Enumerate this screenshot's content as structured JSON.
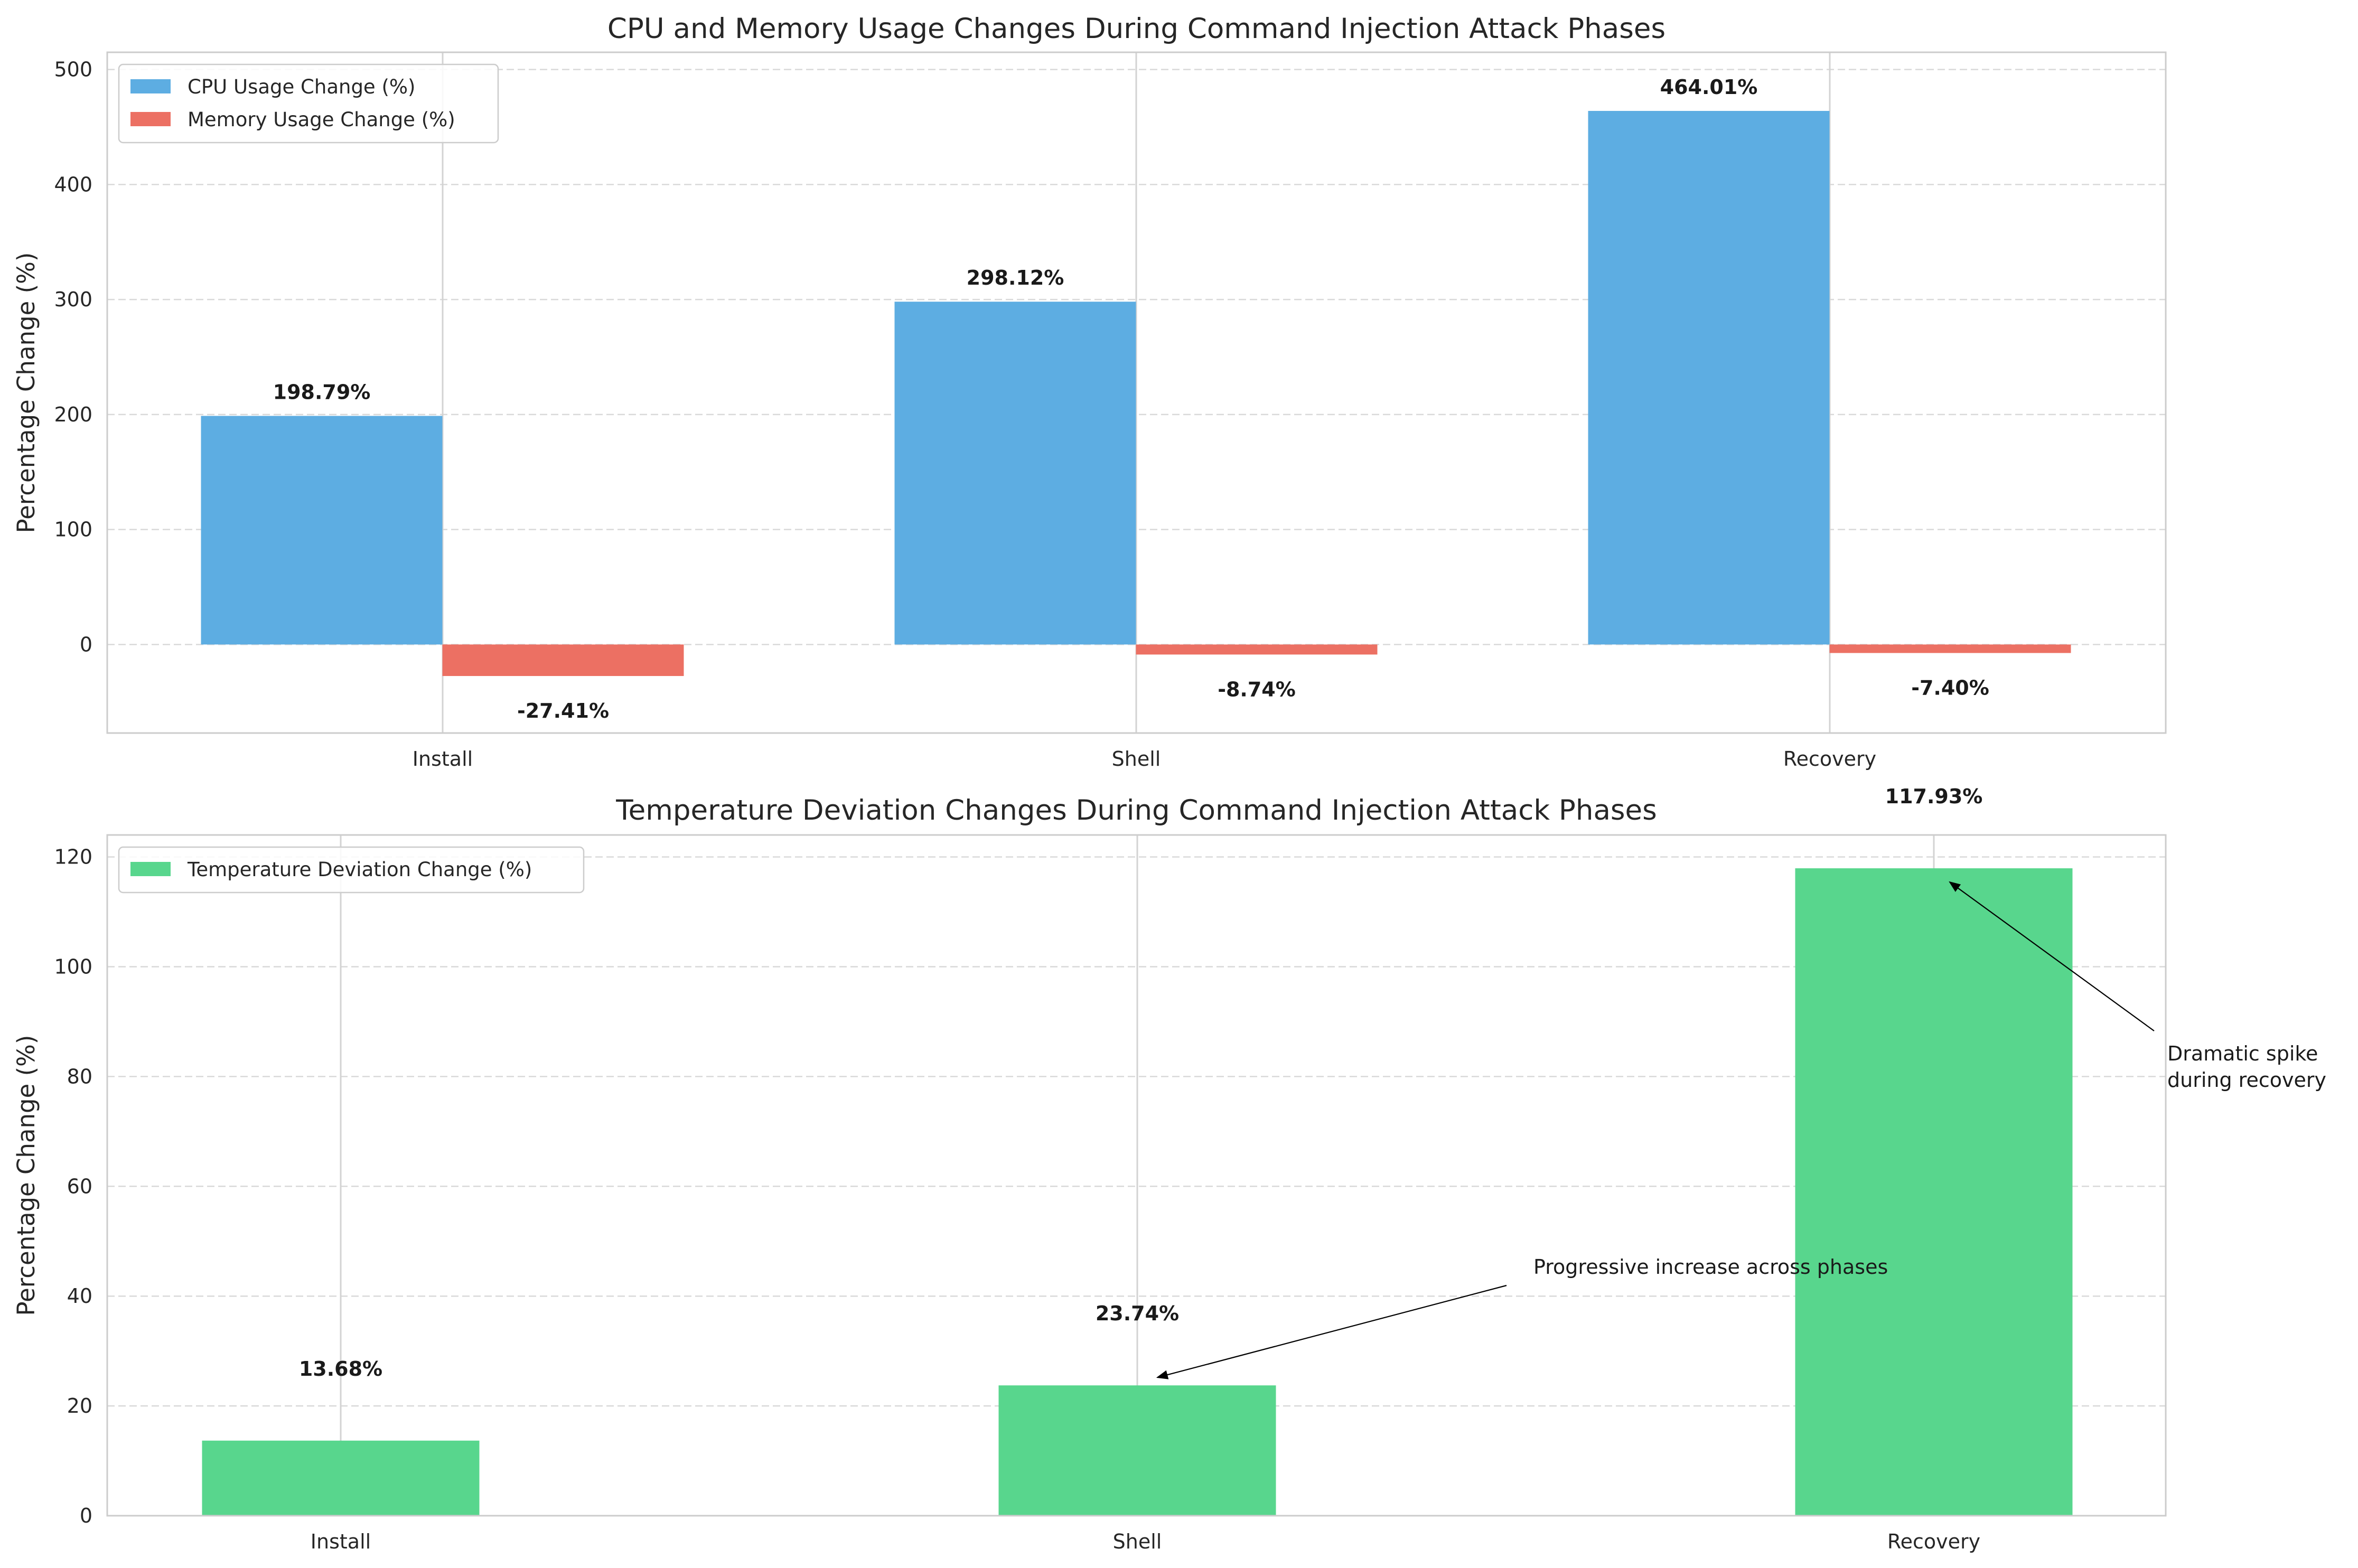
{
  "chart_data": [
    {
      "type": "bar",
      "title": "CPU and Memory Usage Changes During Command Injection Attack Phases",
      "xlabel": "",
      "ylabel": "Percentage Change (%)",
      "categories": [
        "Install",
        "Shell",
        "Recovery"
      ],
      "series": [
        {
          "name": "CPU Usage Change (%)",
          "values": [
            198.79,
            298.12,
            464.01
          ],
          "labels": [
            "198.79%",
            "298.12%",
            "464.01%"
          ],
          "color": "#5dade2"
        },
        {
          "name": "Memory Usage Change (%)",
          "values": [
            -27.41,
            -8.74,
            -7.4
          ],
          "labels": [
            "-27.41%",
            "-8.74%",
            "-7.40%"
          ],
          "color": "#ec7063"
        }
      ],
      "ylim": [
        -77,
        515
      ],
      "yticks": [
        0,
        100,
        200,
        300,
        400,
        500
      ],
      "ytick_labels": [
        "0",
        "100",
        "200",
        "300",
        "400",
        "500"
      ],
      "grid": true,
      "legend": "top-left"
    },
    {
      "type": "bar",
      "title": "Temperature Deviation Changes During Command Injection Attack Phases",
      "xlabel": "",
      "ylabel": "Percentage Change (%)",
      "categories": [
        "Install",
        "Shell",
        "Recovery"
      ],
      "series": [
        {
          "name": "Temperature Deviation Change (%)",
          "values": [
            13.68,
            23.74,
            117.93
          ],
          "labels": [
            "13.68%",
            "23.74%",
            "117.93%"
          ],
          "color": "#58d68d"
        }
      ],
      "ylim": [
        0,
        124
      ],
      "yticks": [
        0,
        20,
        40,
        60,
        80,
        100,
        120
      ],
      "ytick_labels": [
        "0",
        "20",
        "40",
        "60",
        "80",
        "100",
        "120"
      ],
      "grid": true,
      "legend": "top-left",
      "annotations": [
        {
          "text": "Progressive increase across phases",
          "target_category": "Shell",
          "target_value": 23.74
        },
        {
          "text": "Dramatic spike\nduring recovery",
          "target_category": "Recovery",
          "target_value": 117.93
        }
      ]
    }
  ]
}
